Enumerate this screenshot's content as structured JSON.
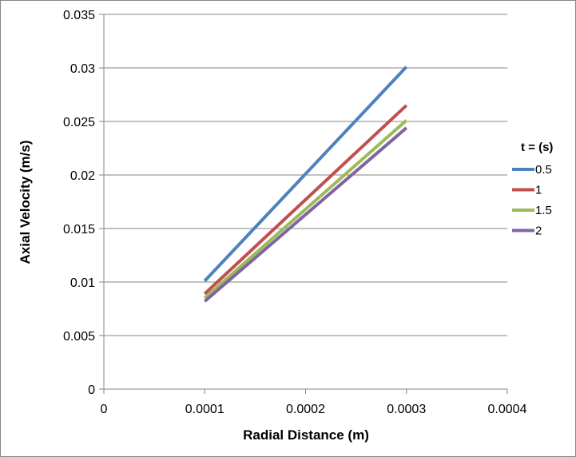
{
  "chart_data": {
    "type": "line",
    "xlabel": "Radial Distance (m)",
    "ylabel": "Axial Velocity (m/s)",
    "xlim": [
      0,
      0.0004
    ],
    "ylim": [
      0,
      0.035
    ],
    "x_ticks": [
      "0",
      "0.0001",
      "0.0002",
      "0.0003",
      "0.0004"
    ],
    "y_ticks": [
      "0",
      "0.005",
      "0.01",
      "0.015",
      "0.02",
      "0.025",
      "0.03",
      "0.035"
    ],
    "grid": "horizontal",
    "legend_title": "t = (s)",
    "legend_position": "right",
    "series": [
      {
        "name": "0.5",
        "color": "#4F81BD",
        "x": [
          0.0001,
          0.0003
        ],
        "y": [
          0.0101,
          0.0301
        ]
      },
      {
        "name": "1",
        "color": "#C0504D",
        "x": [
          0.0001,
          0.0003
        ],
        "y": [
          0.0089,
          0.0265
        ]
      },
      {
        "name": "1.5",
        "color": "#9BBB59",
        "x": [
          0.0001,
          0.0003
        ],
        "y": [
          0.0085,
          0.0251
        ]
      },
      {
        "name": "2",
        "color": "#8064A2",
        "x": [
          0.0001,
          0.0003
        ],
        "y": [
          0.0082,
          0.0244
        ]
      }
    ]
  }
}
